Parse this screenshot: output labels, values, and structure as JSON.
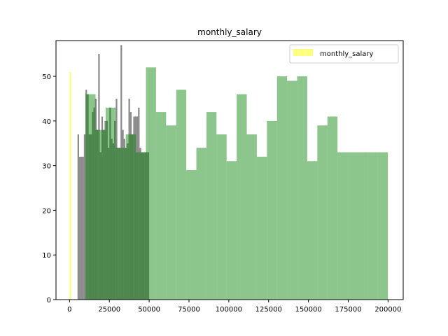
{
  "chart_data": {
    "type": "bar",
    "title": "monthly_salary",
    "xlabel": "",
    "ylabel": "",
    "xlim": [
      -8500,
      209500
    ],
    "ylim": [
      0,
      58
    ],
    "xticks": [
      0,
      25000,
      50000,
      75000,
      100000,
      125000,
      150000,
      175000,
      200000
    ],
    "xtick_labels": [
      "0",
      "25000",
      "50000",
      "75000",
      "100000",
      "125000",
      "150000",
      "175000",
      "200000"
    ],
    "yticks": [
      0,
      10,
      20,
      30,
      40,
      50
    ],
    "ytick_labels": [
      "0",
      "10",
      "20",
      "30",
      "40",
      "50"
    ],
    "grid": false,
    "legend": {
      "position": "top-right",
      "entries": [
        "monthly_salary"
      ]
    },
    "series": [
      {
        "name": "monthly_salary",
        "color": "#ffff00",
        "opacity": 0.5,
        "bin_edges": [
          0,
          1000
        ],
        "counts": [
          51
        ]
      },
      {
        "color": "#000000",
        "opacity": 0.45,
        "bin_edges": [
          5000,
          6000,
          7000,
          8000,
          9000,
          10000,
          11000,
          12000,
          13000,
          14000,
          15000,
          16000,
          17000,
          18000,
          19000,
          20000,
          21000,
          22000,
          23000,
          24000,
          25000,
          26000,
          27000,
          28000,
          29000,
          30000,
          31000,
          32000,
          33000,
          34000,
          35000,
          36000,
          37000,
          38000,
          39000,
          40000,
          41000,
          42000,
          43000,
          44000,
          45000,
          46000,
          47000,
          48000,
          49000,
          50000
        ],
        "counts": [
          37,
          32,
          32,
          32,
          37,
          47,
          46,
          37,
          37,
          42,
          43,
          45,
          38,
          55,
          33,
          41,
          38,
          40,
          40,
          34,
          43,
          36,
          35,
          40,
          45,
          34,
          34,
          57,
          38,
          36,
          34,
          35,
          45,
          42,
          37,
          41,
          41,
          41,
          43,
          34,
          33,
          33,
          33,
          33,
          33
        ]
      },
      {
        "color": "#008000",
        "opacity": 0.45,
        "bin_edges": [
          10000,
          16330,
          22660,
          28990,
          35320,
          41650,
          47980,
          54310,
          60640,
          66970,
          73300,
          79630,
          85960,
          92290,
          98620,
          104950,
          111280,
          117610,
          123940,
          130270,
          136600,
          142930,
          149260,
          155590,
          161920,
          168250,
          174580,
          180910,
          187240,
          193570,
          199900
        ],
        "counts": [
          46,
          38,
          43,
          34,
          37,
          33,
          52,
          42,
          39,
          47,
          29,
          34,
          42,
          37,
          31,
          46,
          37,
          32,
          40,
          50,
          49,
          50,
          31,
          39,
          41,
          33,
          33,
          33,
          33,
          33
        ]
      }
    ]
  }
}
